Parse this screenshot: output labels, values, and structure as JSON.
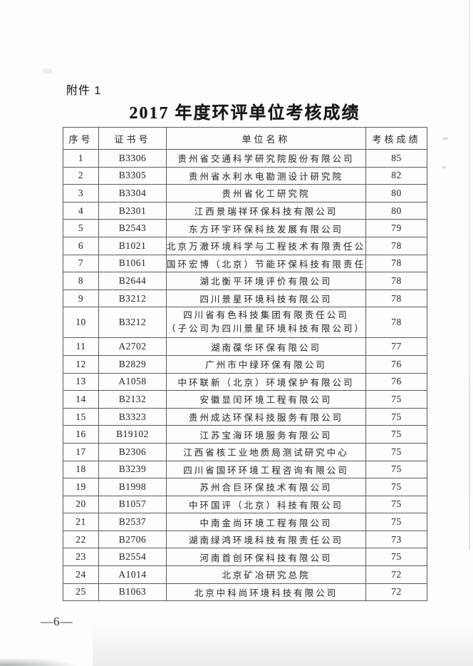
{
  "doc": {
    "attachment_label": "附件 1",
    "title": "2017 年度环评单位考核成绩",
    "page_number": "—6—"
  },
  "table": {
    "columns": [
      "序号",
      "证书号",
      "单位名称",
      "考核成绩"
    ],
    "rows": [
      {
        "no": "1",
        "cert": "B3306",
        "name": "贵州省交通科学研究院股份有限公司",
        "score": "85"
      },
      {
        "no": "2",
        "cert": "B3305",
        "name": "贵州省水利水电勘测设计研究院",
        "score": "82"
      },
      {
        "no": "3",
        "cert": "B3304",
        "name": "贵州省化工研究院",
        "score": "80"
      },
      {
        "no": "4",
        "cert": "B2301",
        "name": "江西景瑞祥环保科技有限公司",
        "score": "80"
      },
      {
        "no": "5",
        "cert": "B2543",
        "name": "东方环宇环保科技发展有限公司",
        "score": "79"
      },
      {
        "no": "6",
        "cert": "B1021",
        "name": "北京万澈环境科学与工程技术有限责任公司",
        "score": "78"
      },
      {
        "no": "7",
        "cert": "B1061",
        "name": "国环宏博（北京）节能环保科技有限责任公司",
        "score": "78"
      },
      {
        "no": "8",
        "cert": "B2644",
        "name": "湖北衡平环境评价有限公司",
        "score": "78"
      },
      {
        "no": "9",
        "cert": "B3212",
        "name": "四川景星环境科技有限公司",
        "score": "78"
      },
      {
        "no": "10",
        "cert": "B3212",
        "name": "四川省有色科技集团有限责任公司",
        "name2": "（子公司为四川景星环境科技有限公司）",
        "score": "78"
      },
      {
        "no": "11",
        "cert": "A2702",
        "name": "湖南葆华环保有限公司",
        "score": "77"
      },
      {
        "no": "12",
        "cert": "B2829",
        "name": "广州市中绿环保有限公司",
        "score": "76"
      },
      {
        "no": "13",
        "cert": "A1058",
        "name": "中环联新（北京）环境保护有限公司",
        "score": "76"
      },
      {
        "no": "14",
        "cert": "B2132",
        "name": "安徽显闰环境工程有限公司",
        "score": "75"
      },
      {
        "no": "15",
        "cert": "B3323",
        "name": "贵州成达环保科技服务有限公司",
        "score": "75"
      },
      {
        "no": "16",
        "cert": "B19102",
        "name": "江苏宝海环境服务有限公司",
        "score": "75"
      },
      {
        "no": "17",
        "cert": "B2306",
        "name": "江西省核工业地质局测试研究中心",
        "score": "75"
      },
      {
        "no": "18",
        "cert": "B3239",
        "name": "四川省国环环境工程咨询有限公司",
        "score": "75"
      },
      {
        "no": "19",
        "cert": "B1998",
        "name": "苏州合巨环保技术有限公司",
        "score": "75"
      },
      {
        "no": "20",
        "cert": "B1057",
        "name": "中环国评（北京）科技有限公司",
        "score": "75"
      },
      {
        "no": "21",
        "cert": "B2537",
        "name": "中南金尚环境工程有限公司",
        "score": "75"
      },
      {
        "no": "22",
        "cert": "B2706",
        "name": "湖南绿鸿环境科技有限责任公司",
        "score": "73"
      },
      {
        "no": "23",
        "cert": "B2554",
        "name": "河南首创环保科技有限公司",
        "score": "75"
      },
      {
        "no": "24",
        "cert": "A1014",
        "name": "北京矿冶研究总院",
        "score": "72"
      },
      {
        "no": "25",
        "cert": "B1063",
        "name": "北京中科尚环境科技有限公司",
        "score": "72"
      }
    ]
  }
}
